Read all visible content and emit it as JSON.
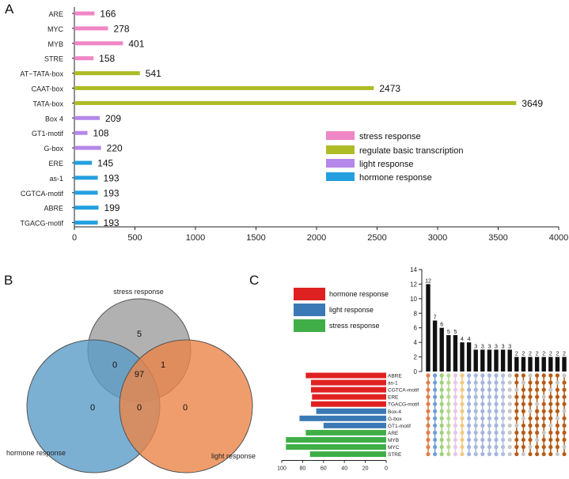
{
  "panels": {
    "a": "A",
    "b": "B",
    "c": "C"
  },
  "colors": {
    "stress": "#ef86c6",
    "regulate": "#aebc26",
    "light": "#b587e8",
    "hormone": "#24a0e0",
    "venn_stress": "#a9a9a9",
    "venn_hormone": "#5a9cc8",
    "venn_light": "#ec8449",
    "c_hormone": "#e02121",
    "c_light": "#3a79b5",
    "c_stress": "#3fae46",
    "c_dark": "#b65b17"
  },
  "chart_data": [
    {
      "id": "A",
      "type": "bar",
      "orientation": "horizontal",
      "categories": [
        "ARE",
        "MYC",
        "MYB",
        "STRE",
        "AT~TATA-box",
        "CAAT-box",
        "TATA-box",
        "Box 4",
        "GT1-motif",
        "G-box",
        "ERE",
        "as-1",
        "CGTCA-motif",
        "ABRE",
        "TGACG-motif"
      ],
      "values": [
        166,
        278,
        401,
        158,
        541,
        2473,
        3649,
        209,
        108,
        220,
        145,
        193,
        193,
        199,
        193
      ],
      "groups": [
        "stress",
        "stress",
        "stress",
        "stress",
        "regulate",
        "regulate",
        "regulate",
        "light",
        "light",
        "light",
        "hormone",
        "hormone",
        "hormone",
        "hormone",
        "hormone"
      ],
      "xlim": [
        0,
        4000
      ],
      "xticks": [
        0,
        500,
        1000,
        1500,
        2000,
        2500,
        3000,
        3500,
        4000
      ],
      "legend": [
        {
          "key": "stress",
          "label": "stress response"
        },
        {
          "key": "regulate",
          "label": "regulate basic transcription"
        },
        {
          "key": "light",
          "label": "light response"
        },
        {
          "key": "hormone",
          "label": "hormone response"
        }
      ],
      "legend_position": "right"
    },
    {
      "id": "B",
      "type": "venn",
      "sets": [
        "stress response",
        "hormone response",
        "light response"
      ],
      "regions": {
        "stress_only": 5,
        "hormone_only": 0,
        "light_only": 0,
        "stress_hormone": 0,
        "stress_light": 1,
        "hormone_light": 0,
        "all": 97
      }
    },
    {
      "id": "C",
      "type": "upset",
      "legend": [
        {
          "key": "hormone",
          "label": "hormone response"
        },
        {
          "key": "light",
          "label": "light response"
        },
        {
          "key": "stress",
          "label": "stress response"
        }
      ],
      "sets": [
        "ABRE",
        "as-1",
        "CGTCA-motif",
        "ERE",
        "TGACG-motif",
        "Box-4",
        "G-box",
        "GT1-motif",
        "ARE",
        "MYB",
        "MYC",
        "STRE"
      ],
      "set_groups": [
        "hormone",
        "hormone",
        "hormone",
        "hormone",
        "hormone",
        "light",
        "light",
        "light",
        "stress",
        "stress",
        "stress",
        "stress"
      ],
      "set_sizes": [
        77,
        72,
        72,
        71,
        72,
        67,
        83,
        60,
        77,
        96,
        96,
        73
      ],
      "set_axis_ticks": [
        100,
        80,
        60,
        40,
        20,
        0
      ],
      "intersection_sizes": [
        12,
        7,
        6,
        5,
        5,
        4,
        4,
        3,
        3,
        3,
        3,
        3,
        3,
        2,
        2,
        2,
        2,
        2,
        2,
        2,
        2
      ],
      "ylim": [
        0,
        14
      ],
      "yticks": [
        0,
        2,
        4,
        6,
        8,
        10,
        12,
        14
      ]
    }
  ]
}
